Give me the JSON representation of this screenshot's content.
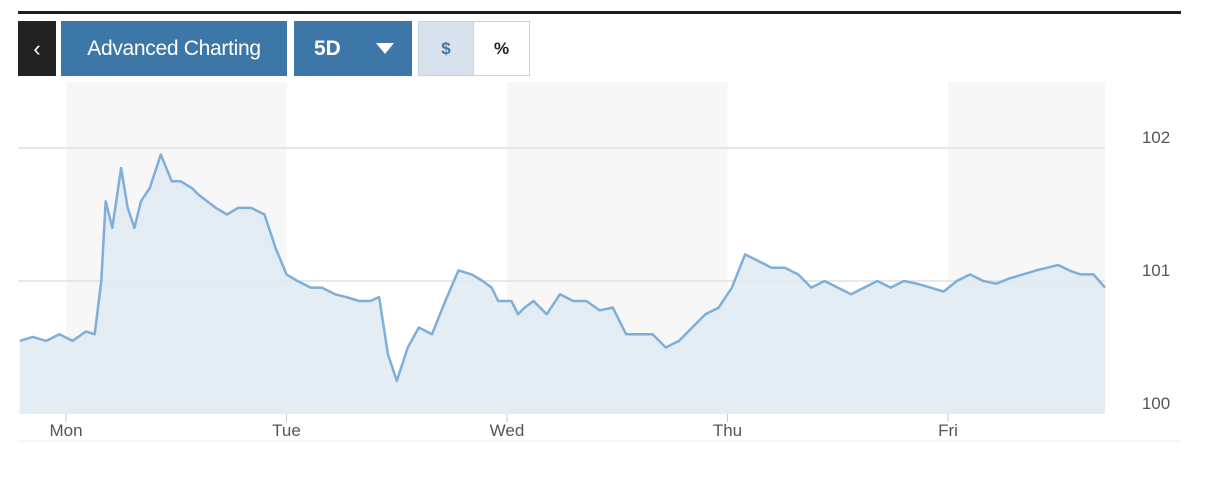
{
  "toolbar": {
    "back_icon": "chevron-left-icon",
    "back_glyph": "‹",
    "advanced_label": "Advanced Charting",
    "range_label": "5D",
    "range_icon": "caret-down-icon",
    "toggle_dollar": "$",
    "toggle_percent": "%",
    "selected_toggle": "$"
  },
  "colors": {
    "button_blue": "#3c77a7",
    "line": "#7fafd9",
    "area": "#dfeaf2",
    "band": "#f7f7f8"
  },
  "chart_data": {
    "type": "area",
    "title": "",
    "xlabel": "",
    "ylabel": "",
    "y_axis_side": "right",
    "ylim": [
      100,
      102.1
    ],
    "y_ticks": [
      100,
      101,
      102
    ],
    "y_tick_labels": [
      "100",
      "101",
      "102"
    ],
    "x_ticks": [
      "Mon",
      "Tue",
      "Wed",
      "Thu",
      "Fri"
    ],
    "grid": true,
    "alternating_day_bands": true,
    "series": [
      {
        "x_days": [
          -0.21,
          -0.15,
          -0.09,
          -0.03,
          0.03,
          0.09,
          0.13,
          0.16,
          0.18,
          0.21,
          0.25,
          0.28,
          0.31,
          0.34,
          0.38,
          0.43,
          0.48,
          0.52,
          0.57,
          0.6,
          0.64,
          0.68,
          0.73,
          0.78,
          0.84,
          0.9,
          0.95,
          1.0,
          1.05,
          1.11,
          1.16,
          1.22,
          1.27,
          1.33,
          1.38,
          1.42,
          1.46,
          1.5,
          1.55,
          1.6,
          1.66,
          1.72,
          1.78,
          1.84,
          1.89,
          1.93,
          1.96,
          1.98,
          2.0,
          2.02,
          2.05,
          2.08,
          2.12,
          2.18,
          2.24,
          2.3,
          2.36,
          2.42,
          2.48,
          2.54,
          2.6,
          2.66,
          2.72,
          2.78,
          2.84,
          2.9,
          2.96,
          3.02,
          3.08,
          3.14,
          3.2,
          3.26,
          3.32,
          3.38,
          3.44,
          3.5,
          3.56,
          3.62,
          3.68,
          3.74,
          3.8,
          3.86,
          3.92,
          3.98,
          4.04,
          4.1,
          4.16,
          4.22,
          4.28,
          4.34,
          4.4,
          4.45,
          4.5,
          4.55,
          4.6,
          4.66,
          4.72
        ],
        "values": [
          100.55,
          100.58,
          100.55,
          100.6,
          100.55,
          100.62,
          100.6,
          101.0,
          101.6,
          101.4,
          101.85,
          101.55,
          101.4,
          101.6,
          101.7,
          101.95,
          101.75,
          101.75,
          101.7,
          101.65,
          101.6,
          101.55,
          101.5,
          101.55,
          101.55,
          101.5,
          101.25,
          101.05,
          101.0,
          100.95,
          100.95,
          100.9,
          100.88,
          100.85,
          100.85,
          100.88,
          100.45,
          100.25,
          100.5,
          100.65,
          100.6,
          100.85,
          101.08,
          101.05,
          101.0,
          100.95,
          100.85,
          100.85,
          100.85,
          100.85,
          100.75,
          100.8,
          100.85,
          100.75,
          100.9,
          100.85,
          100.85,
          100.78,
          100.8,
          100.6,
          100.6,
          100.6,
          100.5,
          100.55,
          100.65,
          100.75,
          100.8,
          100.95,
          101.2,
          101.15,
          101.1,
          101.1,
          101.05,
          100.95,
          101.0,
          100.95,
          100.9,
          100.95,
          101.0,
          100.95,
          101.0,
          100.98,
          100.95,
          100.92,
          101.0,
          101.05,
          101.0,
          100.98,
          101.02,
          101.05,
          101.08,
          101.1,
          101.12,
          101.08,
          101.05,
          101.05,
          100.95
        ]
      }
    ]
  }
}
